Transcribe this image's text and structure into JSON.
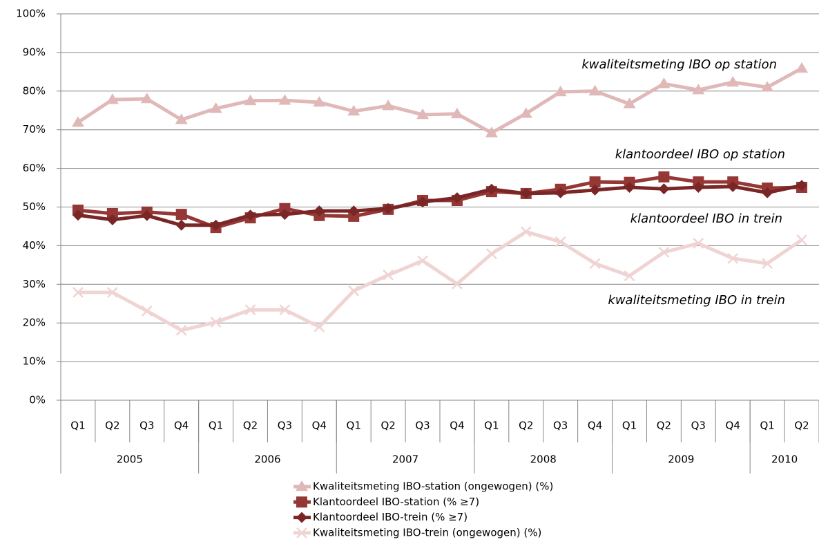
{
  "chart_data": {
    "type": "line",
    "categories": [
      "Q1",
      "Q2",
      "Q3",
      "Q4",
      "Q1",
      "Q2",
      "Q3",
      "Q4",
      "Q1",
      "Q2",
      "Q3",
      "Q4",
      "Q1",
      "Q2",
      "Q3",
      "Q4",
      "Q1",
      "Q2",
      "Q3",
      "Q4",
      "Q1",
      "Q2"
    ],
    "category_groups": [
      {
        "label": "2005",
        "count": 4
      },
      {
        "label": "2006",
        "count": 4
      },
      {
        "label": "2007",
        "count": 4
      },
      {
        "label": "2008",
        "count": 4
      },
      {
        "label": "2009",
        "count": 4
      },
      {
        "label": "2010",
        "count": 2
      }
    ],
    "series": [
      {
        "name": "Kwaliteitsmeting IBO-station (ongewogen) (%)",
        "color": "#e0b8b8",
        "marker": "triangle",
        "values": [
          71.9,
          77.8,
          78,
          72.6,
          75.5,
          77.5,
          77.6,
          77.1,
          74.8,
          76.2,
          73.9,
          74.1,
          69.2,
          74.2,
          79.8,
          80,
          76.7,
          81.9,
          80.3,
          82.3,
          81,
          85.9
        ]
      },
      {
        "name": "Klantoordeel IBO-station (% ≥7)",
        "color": "#953735",
        "marker": "square",
        "values": [
          49.2,
          48.3,
          48.7,
          48.1,
          44.7,
          47.2,
          49.6,
          47.8,
          47.6,
          49.4,
          51.7,
          51.7,
          54,
          53.5,
          54.6,
          56.5,
          56.4,
          57.8,
          56.5,
          56.5,
          54.9,
          55.1
        ]
      },
      {
        "name": "Klantoordeel IBO-trein (% ≥7)",
        "color": "#7a2626",
        "marker": "diamond",
        "values": [
          47.9,
          46.7,
          47.8,
          45.3,
          45.3,
          47.9,
          48.1,
          49,
          49,
          49.6,
          51.3,
          52.4,
          54.6,
          53.5,
          53.7,
          54.4,
          55.1,
          54.7,
          55.1,
          55.3,
          53.7,
          55.6
        ]
      },
      {
        "name": "Kwaliteitsmeting IBO-trein (ongewogen) (%)",
        "color": "#f0d4d4",
        "marker": "x",
        "values": [
          27.9,
          27.9,
          23.1,
          18.1,
          20.2,
          23.4,
          23.4,
          19,
          28.3,
          32.4,
          36.1,
          30.1,
          37.9,
          43.6,
          41,
          35.4,
          32.2,
          38.3,
          40.6,
          36.7,
          35.4,
          41.5
        ]
      }
    ],
    "ylim": [
      0,
      100
    ],
    "yticks": [
      {
        "value": 0,
        "label": "0%"
      },
      {
        "value": 10,
        "label": "10%"
      },
      {
        "value": 20,
        "label": "20%"
      },
      {
        "value": 30,
        "label": "30%"
      },
      {
        "value": 40,
        "label": "40%"
      },
      {
        "value": 50,
        "label": "50%"
      },
      {
        "value": 60,
        "label": "60%"
      },
      {
        "value": 70,
        "label": "70%"
      },
      {
        "value": 80,
        "label": "80%"
      },
      {
        "value": 90,
        "label": "90%"
      },
      {
        "value": 100,
        "label": "100%"
      }
    ],
    "grid": true,
    "legend": "bottom",
    "annotations": [
      "kwaliteitsmeting IBO op station",
      "klantoordeel IBO op station",
      "klantoordeel IBO in trein",
      "kwaliteitsmeting IBO in trein"
    ]
  }
}
